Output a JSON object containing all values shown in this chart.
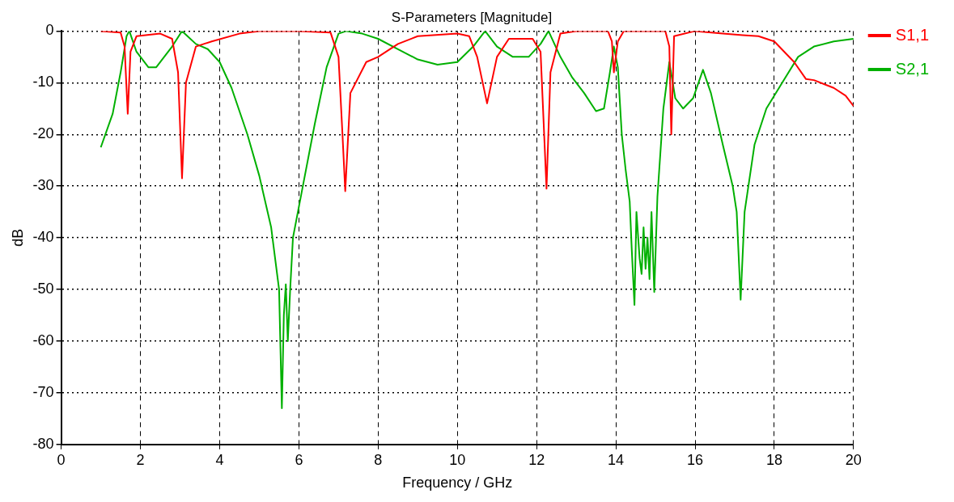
{
  "chart_data": {
    "type": "line",
    "title": "S-Parameters [Magnitude]",
    "xlabel": "Frequency / GHz",
    "ylabel": "dB",
    "xlim": [
      0,
      20
    ],
    "ylim": [
      -80,
      0
    ],
    "xticks": [
      0,
      2,
      4,
      6,
      8,
      10,
      12,
      14,
      16,
      18,
      20
    ],
    "yticks": [
      -80,
      -70,
      -60,
      -50,
      -40,
      -30,
      -20,
      -10,
      0
    ],
    "grid": true,
    "legend": "right",
    "marker": "none",
    "line_style": "solid",
    "series": [
      {
        "name": "S1,1",
        "color": "#ff0000",
        "x": [
          1.0,
          1.5,
          1.6,
          1.68,
          1.75,
          1.9,
          2.5,
          2.8,
          2.95,
          3.05,
          3.15,
          3.4,
          3.8,
          4.5,
          5,
          6,
          6.8,
          7.0,
          7.1,
          7.17,
          7.3,
          7.7,
          8.0,
          8.5,
          9,
          10,
          10.3,
          10.5,
          10.75,
          11,
          11.3,
          11.9,
          12.1,
          12.25,
          12.35,
          12.6,
          13,
          13.8,
          13.9,
          13.95,
          14.05,
          14.2,
          15.25,
          15.35,
          15.4,
          15.47,
          16,
          16.7,
          17.2,
          17.6,
          18,
          18.5,
          18.8,
          19,
          19.5,
          19.8,
          20
        ],
        "values": [
          0,
          -0.3,
          -3,
          -16,
          -4,
          -1,
          -0.5,
          -1.5,
          -8,
          -28.5,
          -10,
          -3,
          -2,
          -0.5,
          0,
          0,
          -0.3,
          -5,
          -20,
          -31,
          -12,
          -6,
          -5,
          -2.5,
          -1,
          -0.5,
          -1,
          -5,
          -14,
          -5,
          -1.5,
          -1.5,
          -4,
          -30.5,
          -8,
          -0.5,
          0,
          0,
          -2,
          -8,
          -2,
          0,
          0,
          -3,
          -20,
          -1,
          0,
          -0.5,
          -0.8,
          -1,
          -2,
          -6,
          -9.3,
          -9.5,
          -11,
          -12.5,
          -14.5
        ]
      },
      {
        "name": "S2,1",
        "color": "#00b000",
        "x": [
          1.0,
          1.3,
          1.5,
          1.65,
          1.72,
          1.9,
          2.2,
          2.4,
          2.8,
          3.05,
          3.4,
          3.7,
          4.0,
          4.3,
          4.7,
          5.0,
          5.3,
          5.5,
          5.57,
          5.62,
          5.67,
          5.72,
          5.78,
          5.85,
          6.1,
          6.4,
          6.7,
          7.0,
          7.2,
          7.6,
          8.0,
          8.5,
          9,
          9.5,
          10.0,
          10.4,
          10.7,
          11.0,
          11.4,
          11.8,
          12.1,
          12.3,
          12.6,
          12.9,
          13.2,
          13.5,
          13.7,
          13.85,
          13.95,
          14.05,
          14.15,
          14.25,
          14.35,
          14.4,
          14.47,
          14.52,
          14.6,
          14.65,
          14.7,
          14.75,
          14.8,
          14.85,
          14.9,
          14.97,
          15.05,
          15.2,
          15.35,
          15.5,
          15.7,
          15.95,
          16.2,
          16.4,
          16.7,
          16.95,
          17.05,
          17.15,
          17.25,
          17.5,
          17.8,
          18.2,
          18.6,
          19,
          19.5,
          20
        ],
        "values": [
          -22.5,
          -16,
          -8,
          -1,
          0,
          -4,
          -7,
          -7,
          -3,
          0,
          -2.5,
          -3.5,
          -6,
          -11,
          -20,
          -28,
          -38,
          -50,
          -73,
          -55,
          -49,
          -60,
          -50,
          -40,
          -30,
          -18,
          -7,
          -0.5,
          0,
          -0.5,
          -1.5,
          -3.5,
          -5.5,
          -6.5,
          -6,
          -3,
          0,
          -3,
          -5,
          -5,
          -2.5,
          0,
          -5,
          -9,
          -12,
          -15.5,
          -15,
          -8,
          -3,
          -7,
          -20,
          -27,
          -33,
          -42,
          -53,
          -35,
          -44,
          -47,
          -38,
          -46,
          -40,
          -48,
          -35,
          -50.5,
          -32,
          -15,
          -6,
          -13,
          -15,
          -13,
          -7.5,
          -12,
          -22,
          -30,
          -35,
          -52,
          -35,
          -22,
          -15,
          -10,
          -5,
          -3,
          -2,
          -1.5
        ]
      }
    ]
  }
}
